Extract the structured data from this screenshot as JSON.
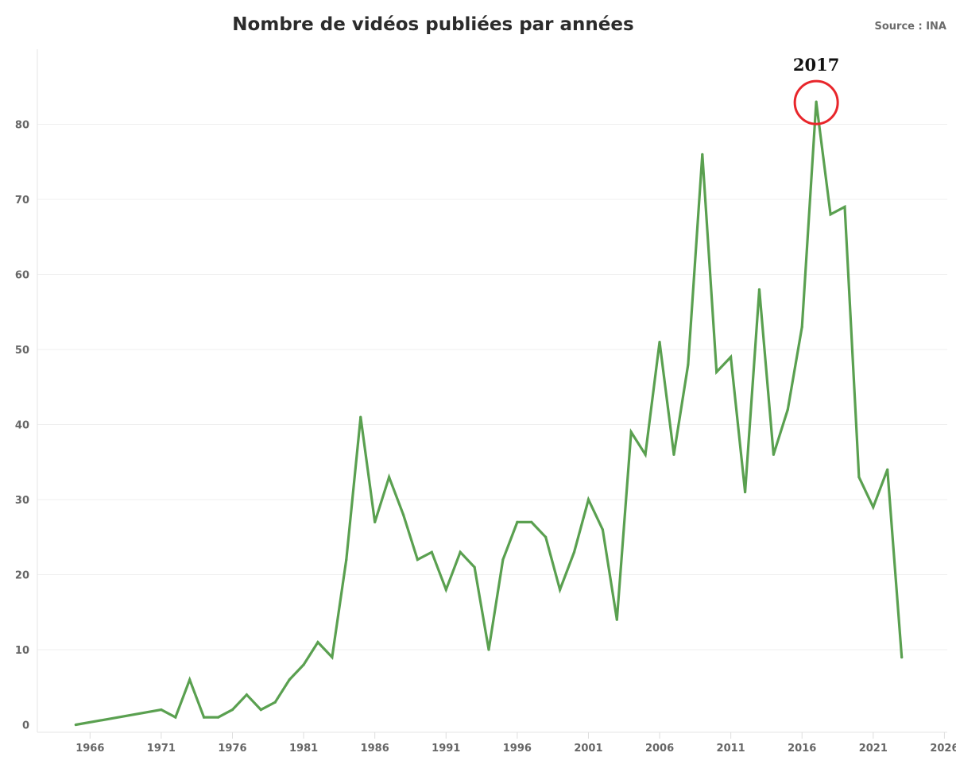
{
  "chart_data": {
    "type": "line",
    "title": "Nombre de vidéos publiées par années",
    "source": "Source : INA",
    "xlabel": "",
    "ylabel": "",
    "xlim": [
      1962.3,
      2026.2
    ],
    "ylim": [
      -1,
      90
    ],
    "x_ticks": [
      1966,
      1971,
      1976,
      1981,
      1986,
      1991,
      1996,
      2001,
      2006,
      2011,
      2016,
      2021,
      2026
    ],
    "y_ticks": [
      0,
      10,
      20,
      30,
      40,
      50,
      60,
      70,
      80
    ],
    "grid": true,
    "line_color": "#5aa050",
    "series": [
      {
        "x": [
          1965,
          1971,
          1972,
          1973,
          1974,
          1975,
          1976,
          1977,
          1978,
          1979,
          1980,
          1981,
          1982,
          1983,
          1984,
          1985,
          1986,
          1987,
          1988,
          1989,
          1990,
          1991,
          1992,
          1993,
          1994,
          1995,
          1996,
          1997,
          1998,
          1999,
          2000,
          2001,
          2002,
          2003,
          2004,
          2005,
          2006,
          2007,
          2008,
          2009,
          2010,
          2011,
          2012,
          2013,
          2014,
          2015,
          2016,
          2017,
          2018,
          2019,
          2020,
          2021,
          2022,
          2023
        ],
        "y": [
          0,
          2,
          1,
          6,
          1,
          1,
          2,
          4,
          2,
          3,
          6,
          8,
          11,
          9,
          22,
          41,
          27,
          33,
          28,
          22,
          23,
          18,
          23,
          21,
          10,
          22,
          27,
          27,
          25,
          18,
          23,
          30,
          26,
          14,
          39,
          36,
          51,
          36,
          48,
          76,
          47,
          49,
          31,
          58,
          36,
          42,
          53,
          83,
          68,
          69,
          33,
          29,
          34,
          9
        ]
      }
    ],
    "annotations": [
      {
        "label": "2017",
        "x": 2017,
        "y": 83,
        "color": "#e8262b"
      }
    ]
  }
}
